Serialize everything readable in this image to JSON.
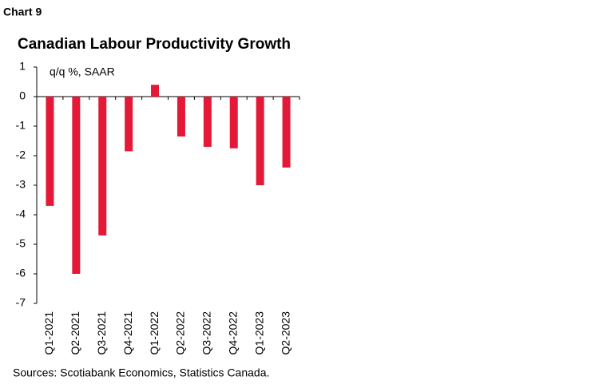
{
  "chart_data": {
    "type": "bar",
    "chart_label": "Chart 9",
    "title": "Canadian Labour Productivity Growth",
    "annotation": "q/q %, SAAR",
    "source": "Sources: Scotiabank Economics, Statistics Canada.",
    "categories": [
      "Q1-2021",
      "Q2-2021",
      "Q3-2021",
      "Q4-2021",
      "Q1-2022",
      "Q2-2022",
      "Q3-2022",
      "Q4-2022",
      "Q1-2023",
      "Q2-2023"
    ],
    "values": [
      -3.7,
      -6.0,
      -4.7,
      -1.85,
      0.4,
      -1.35,
      -1.7,
      -1.75,
      -3.0,
      -2.4
    ],
    "color": "#e31937",
    "ylim": [
      -7,
      1
    ],
    "yticks": [
      -7,
      -6,
      -5,
      -4,
      -3,
      -2,
      -1,
      0,
      1
    ],
    "grid": false
  }
}
